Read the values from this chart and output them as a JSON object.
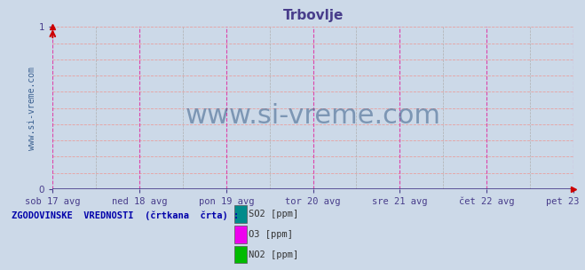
{
  "title": "Trbovlje",
  "title_color": "#483D8B",
  "background_color": "#ccd9e8",
  "plot_bg_color": "#ccd9e8",
  "xlim": [
    0,
    1
  ],
  "ylim": [
    0,
    1
  ],
  "x_tick_labels": [
    "sob 17 avg",
    "ned 18 avg",
    "pon 19 avg",
    "tor 20 avg",
    "sre 21 avg",
    "čet 22 avg",
    "pet 23 avg"
  ],
  "x_tick_positions": [
    0.0,
    0.1667,
    0.3333,
    0.5,
    0.6667,
    0.8333,
    1.0
  ],
  "watermark": "www.si-vreme.com",
  "watermark_color": "#3a5f8a",
  "ylabel_text": "www.si-vreme.com",
  "ylabel_color": "#3a6090",
  "legend_title": "ZGODOVINSKE  VREDNOSTI  (črtkana  črta) :",
  "legend_title_color": "#0000aa",
  "legend_items": [
    {
      "label": "SO2 [ppm]",
      "color": "#008B8B"
    },
    {
      "label": "O3 [ppm]",
      "color": "#ee00ee"
    },
    {
      "label": "NO2 [ppm]",
      "color": "#00bb00"
    }
  ],
  "axis_color": "#483D8B",
  "tick_label_color": "#483D8B",
  "vline_positions": [
    0.0,
    0.1667,
    0.3333,
    0.5,
    0.6667,
    0.8333,
    1.0
  ],
  "minor_vline_positions": [
    0.0833,
    0.25,
    0.4167,
    0.5833,
    0.75,
    0.9167
  ],
  "hgrid_positions": [
    0.1,
    0.2,
    0.3,
    0.4,
    0.5,
    0.6,
    0.7,
    0.8,
    0.9,
    1.0
  ],
  "arrow_color": "#cc0000"
}
